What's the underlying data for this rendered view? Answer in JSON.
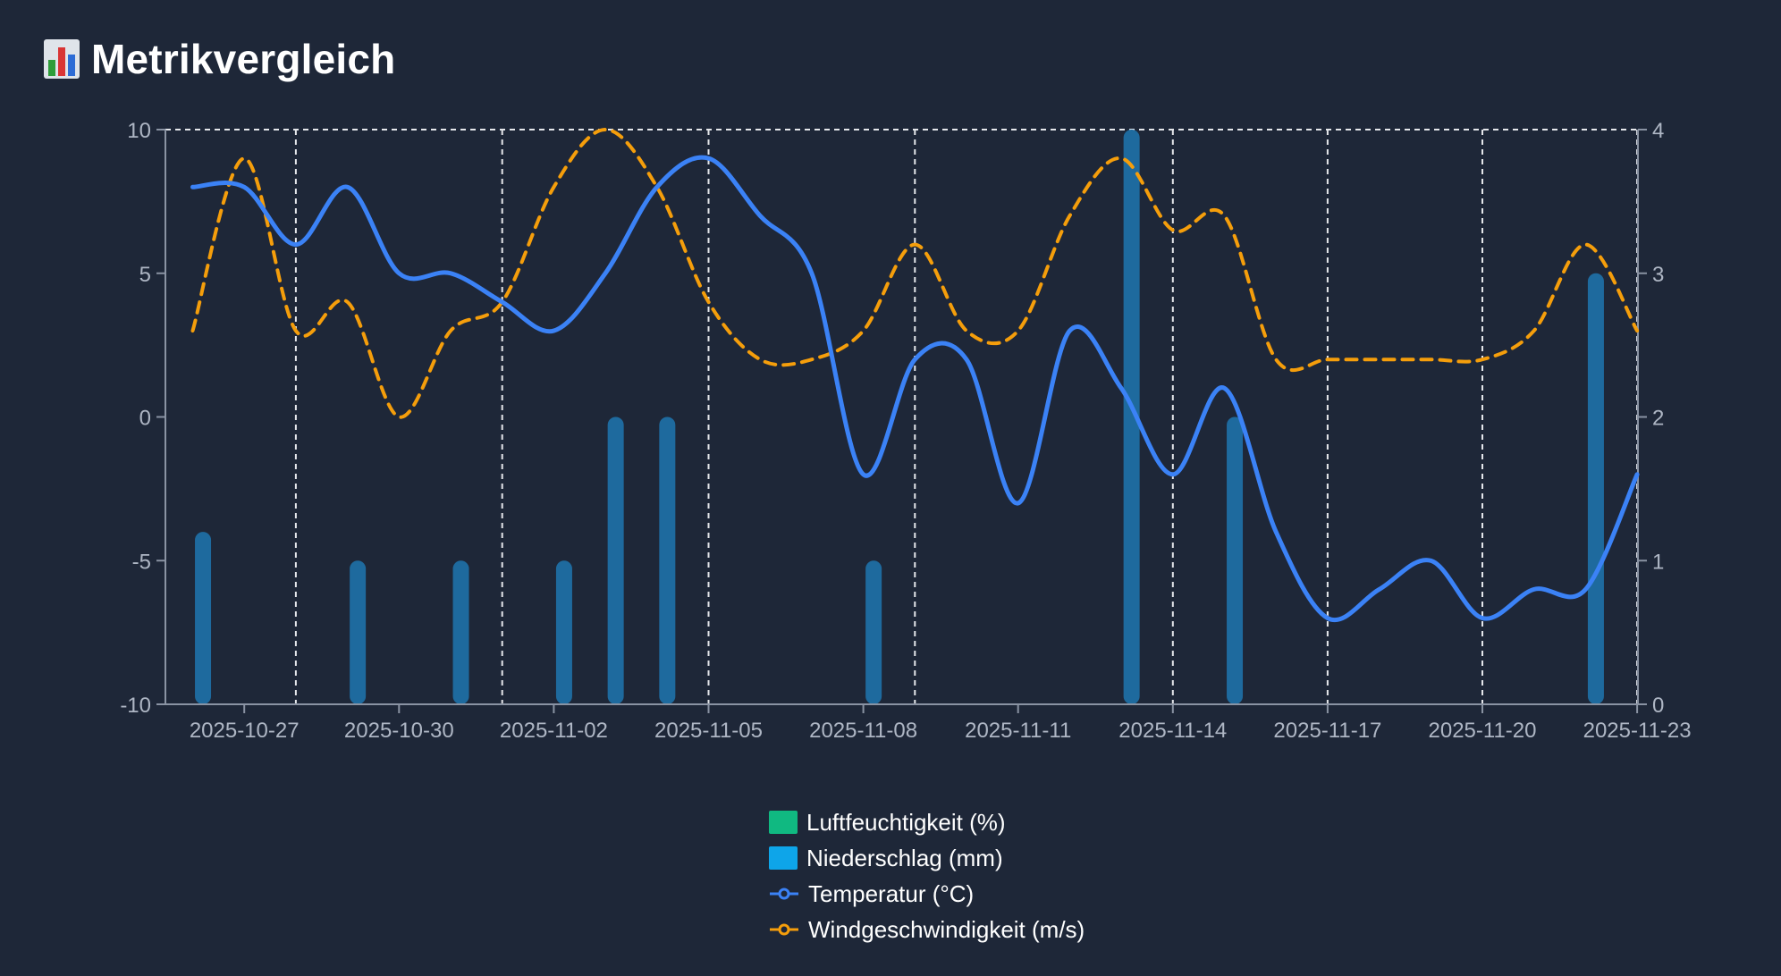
{
  "header": {
    "icon": "bar-chart-icon",
    "title": "Metrikvergleich"
  },
  "colors": {
    "background": "#1e2738",
    "humidity": "#10b981",
    "precipitation": "#0ea5e9",
    "precipitation_bar": "#1e6a9e",
    "temperature": "#3b82f6",
    "wind": "#f59e0b",
    "grid": "#e5e7eb",
    "tick_text": "#aeb6c4"
  },
  "legend": [
    {
      "key": "humidity",
      "label": "Luftfeuchtigkeit (%)",
      "kind": "box",
      "color": "#10b981"
    },
    {
      "key": "precipitation",
      "label": "Niederschlag (mm)",
      "kind": "box",
      "color": "#0ea5e9"
    },
    {
      "key": "temperature",
      "label": "Temperatur (°C)",
      "kind": "line",
      "color": "#3b82f6"
    },
    {
      "key": "wind",
      "label": "Windgeschwindigkeit (m/s)",
      "kind": "dashed",
      "color": "#f59e0b"
    }
  ],
  "chart_data": {
    "type": "line",
    "title": "Metrikvergleich",
    "x_start": "2025-10-25",
    "x_end": "2025-11-23",
    "x_tick_labels": [
      "2025-10-27",
      "2025-10-30",
      "2025-11-02",
      "2025-11-05",
      "2025-11-08",
      "2025-11-11",
      "2025-11-14",
      "2025-11-17",
      "2025-11-20",
      "2025-11-23"
    ],
    "x_tick_days": [
      2,
      5,
      8,
      11,
      14,
      17,
      20,
      23,
      26,
      29
    ],
    "vertical_gridline_days": [
      3,
      7,
      11,
      15,
      20,
      23,
      26,
      29
    ],
    "y_left": {
      "min": -10,
      "max": 10,
      "ticks": [
        "-10",
        "-5",
        "0",
        "5",
        "10"
      ]
    },
    "y_right": {
      "min": 0,
      "max": 4,
      "ticks": [
        "0",
        "1",
        "2",
        "3",
        "4"
      ]
    },
    "series": [
      {
        "name": "Temperatur (°C)",
        "axis": "left",
        "style": "solid",
        "x": [
          1,
          2,
          3,
          4,
          5,
          6,
          7,
          8,
          9,
          10,
          11,
          12,
          13,
          14,
          15,
          16,
          17,
          18,
          19,
          20,
          21,
          22,
          23,
          24,
          25,
          26,
          27,
          28,
          29
        ],
        "values": [
          8,
          8,
          6,
          8,
          5,
          5,
          4,
          3,
          5,
          8,
          9,
          7,
          5,
          -2,
          2,
          2,
          -3,
          3,
          1,
          -2,
          1,
          -4,
          -7,
          -6,
          -5,
          -7,
          -6,
          -6,
          -2
        ]
      },
      {
        "name": "Windgeschwindigkeit (m/s)",
        "axis": "right",
        "style": "dashed",
        "x": [
          1,
          2,
          3,
          4,
          5,
          6,
          7,
          8,
          9,
          10,
          11,
          12,
          13,
          14,
          15,
          16,
          17,
          18,
          19,
          20,
          21,
          22,
          23,
          24,
          25,
          26,
          27,
          28,
          29
        ],
        "values": [
          2.6,
          3.8,
          2.6,
          2.8,
          2.0,
          2.6,
          2.8,
          3.6,
          4.0,
          3.6,
          2.8,
          2.4,
          2.4,
          2.6,
          3.2,
          2.6,
          2.6,
          3.4,
          3.8,
          3.3,
          3.4,
          2.4,
          2.4,
          2.4,
          2.4,
          2.4,
          2.6,
          3.2,
          2.6
        ]
      },
      {
        "name": "Niederschlag (mm)",
        "axis": "right",
        "style": "bar",
        "x": [
          1.2,
          4.2,
          6.2,
          8.2,
          9.2,
          10.2,
          14.2,
          19.2,
          21.2,
          28.2
        ],
        "values": [
          1.2,
          1.0,
          1.0,
          1.0,
          2.0,
          2.0,
          1.0,
          4.0,
          2.0,
          3.0
        ]
      },
      {
        "name": "Luftfeuchtigkeit (%)",
        "axis": "right",
        "style": "bar",
        "x": [],
        "values": []
      }
    ]
  }
}
